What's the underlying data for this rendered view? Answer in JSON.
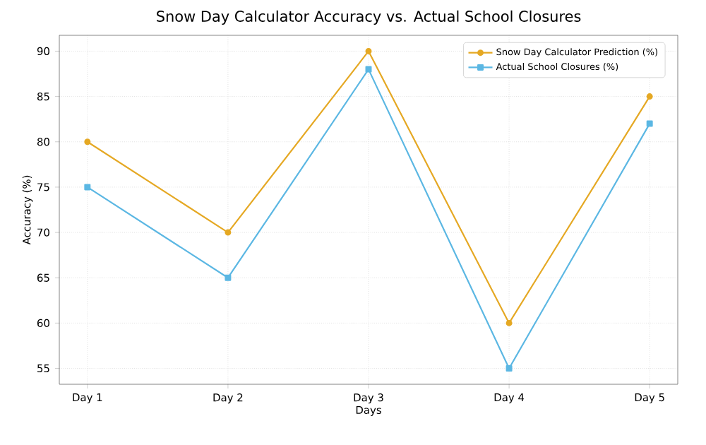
{
  "chart_data": {
    "type": "line",
    "title": "Snow Day Calculator Accuracy vs. Actual School Closures",
    "xlabel": "Days",
    "ylabel": "Accuracy (%)",
    "categories": [
      "Day 1",
      "Day 2",
      "Day 3",
      "Day 4",
      "Day 5"
    ],
    "series": [
      {
        "name": "Snow Day Calculator Prediction (%)",
        "color": "#e5a823",
        "marker": "circle",
        "values": [
          80,
          70,
          90,
          60,
          85
        ]
      },
      {
        "name": "Actual School Closures (%)",
        "color": "#5bb7e3",
        "marker": "square",
        "values": [
          75,
          65,
          88,
          55,
          82
        ]
      }
    ],
    "ylim": [
      53.25,
      91.75
    ],
    "yticks": [
      55,
      60,
      65,
      70,
      75,
      80,
      85,
      90
    ],
    "grid": true,
    "legend": "top right",
    "line_style": "solid"
  }
}
